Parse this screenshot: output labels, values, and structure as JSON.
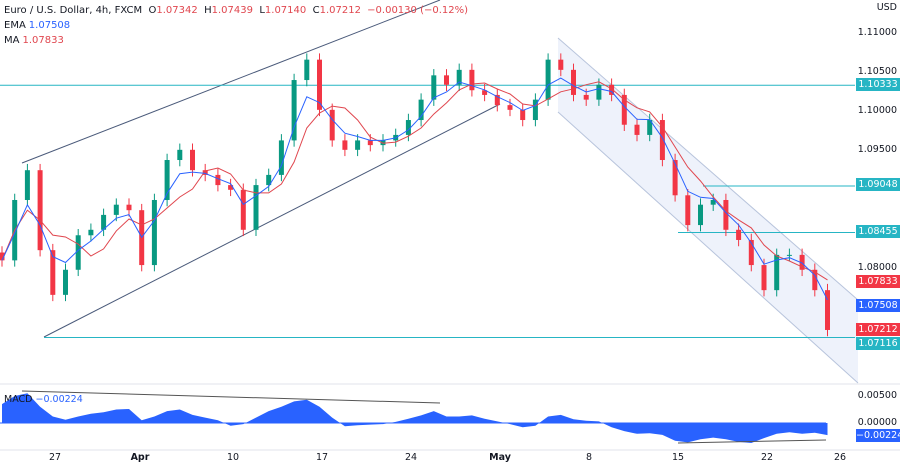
{
  "header": {
    "symbol": "Euro / U.S. Dollar, 4h, FXCM",
    "o_label": "O",
    "open": "1.07342",
    "h_label": "H",
    "high": "1.07439",
    "l_label": "L",
    "low": "1.07140",
    "c_label": "C",
    "close": "1.07212",
    "change": "−0.00130 (−0.12%)",
    "ema_label": "EMA",
    "ema_value": "1.07508",
    "ma_label": "MA",
    "ma_value": "1.07833"
  },
  "price_axis": {
    "currency": "USD",
    "ticks": [
      "1.11000",
      "1.10500",
      "1.10000",
      "1.09500",
      "1.08000"
    ]
  },
  "levels": [
    {
      "price": 1.10333,
      "label": "1.10333"
    },
    {
      "price": 1.09048,
      "label": "1.09048"
    },
    {
      "price": 1.08455,
      "label": "1.08455"
    },
    {
      "price": 1.07116,
      "label": "1.07116"
    }
  ],
  "price_labels": {
    "ma": "1.07833",
    "ema": "1.07508",
    "last": "1.07212"
  },
  "colors": {
    "up": "#089981",
    "down": "#f23645",
    "ema": "#2962ff",
    "ma": "#e0464e",
    "level": "#26b5c4",
    "macd": "#2962ff"
  },
  "macd": {
    "label": "MACD",
    "value": "−0.00224",
    "ticks": [
      "0.00500",
      "0.00000"
    ],
    "current_label": "−0.00224"
  },
  "date_axis": [
    "27",
    "Apr",
    "10",
    "17",
    "24",
    "May",
    "8",
    "15",
    "22",
    "26"
  ],
  "chart_data": {
    "type": "candlestick",
    "ylim": [
      1.065,
      1.1125
    ],
    "closes": [
      1.081,
      1.0887,
      1.0925,
      1.0823,
      1.0766,
      1.0798,
      1.0842,
      1.0849,
      1.0868,
      1.0881,
      1.0874,
      1.0804,
      1.0887,
      1.0938,
      1.0951,
      1.0925,
      1.0919,
      1.0906,
      1.09,
      1.0849,
      1.0906,
      1.0919,
      1.0963,
      1.104,
      1.1066,
      1.1002,
      1.0963,
      1.0951,
      1.0963,
      1.0957,
      1.0963,
      1.097,
      1.0989,
      1.1015,
      1.1046,
      1.1034,
      1.1053,
      1.1027,
      1.1021,
      1.1008,
      1.1002,
      1.0989,
      1.1015,
      1.1066,
      1.1053,
      1.1021,
      1.1015,
      1.1034,
      1.1021,
      1.0983,
      1.097,
      1.0989,
      1.0938,
      1.0893,
      1.0855,
      1.0881,
      1.0887,
      1.0849,
      1.0836,
      1.0804,
      1.0772,
      1.0817,
      1.0817,
      1.0798,
      1.0772,
      1.07212
    ],
    "macd": [
      0.0035,
      0.005,
      0.0055,
      0.003,
      0.0012,
      0.0006,
      0.0012,
      0.0017,
      0.002,
      0.0025,
      0.0026,
      0.0005,
      0.0012,
      0.0022,
      0.0025,
      0.0015,
      0.001,
      0.0005,
      -0.0005,
      -0.0002,
      0.001,
      0.0022,
      0.003,
      0.004,
      0.0043,
      0.003,
      0.001,
      -0.0006,
      -0.0004,
      -0.0003,
      -0.0002,
      0.0002,
      0.0008,
      0.0014,
      0.0022,
      0.0012,
      0.0012,
      0.0014,
      0.0008,
      0.0003,
      -0.0002,
      -0.0008,
      -0.0005,
      0.0012,
      0.0015,
      0.0007,
      0.0004,
      0.0003,
      -0.0008,
      -0.0015,
      -0.002,
      -0.0019,
      -0.0022,
      -0.0033,
      -0.0036,
      -0.003,
      -0.0027,
      -0.003,
      -0.0035,
      -0.0037,
      -0.0028,
      -0.002,
      -0.0017,
      -0.002,
      -0.0018,
      -0.00224
    ]
  }
}
